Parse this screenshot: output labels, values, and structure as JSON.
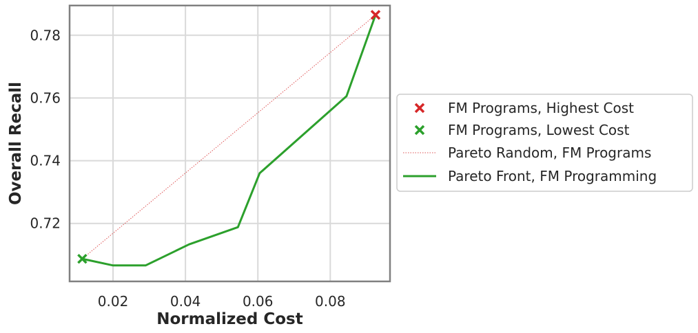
{
  "chart_data": {
    "type": "line",
    "title": "",
    "xlabel": "Normalized Cost",
    "ylabel": "Overall Recall",
    "xlim": [
      0.008,
      0.0965
    ],
    "ylim": [
      0.7015,
      0.7895
    ],
    "xticks": [
      "0.02",
      "0.04",
      "0.06",
      "0.08"
    ],
    "xtick_values": [
      0.02,
      0.04,
      0.06,
      0.08
    ],
    "yticks": [
      "0.72",
      "0.74",
      "0.76",
      "0.78"
    ],
    "ytick_values": [
      0.72,
      0.74,
      0.76,
      0.78
    ],
    "grid": true,
    "legend_position": "right, outside plot",
    "series": [
      {
        "name": "FM Programs, Highest Cost",
        "kind": "marker-x",
        "color": "#d62728",
        "x": [
          0.0925
        ],
        "y": [
          0.7865
        ]
      },
      {
        "name": "FM Programs, Lowest Cost",
        "kind": "marker-x",
        "color": "#2ca02c",
        "x": [
          0.0115
        ],
        "y": [
          0.7087
        ]
      },
      {
        "name": "Pareto Random, FM Programs",
        "kind": "dotted-line",
        "color": "#d62728",
        "x": [
          0.0115,
          0.0925
        ],
        "y": [
          0.7087,
          0.7865
        ]
      },
      {
        "name": "Pareto Front, FM Programming",
        "kind": "line",
        "color": "#2ca02c",
        "x": [
          0.0115,
          0.02,
          0.029,
          0.041,
          0.0545,
          0.0605,
          0.0845,
          0.0925
        ],
        "y": [
          0.7087,
          0.7066,
          0.7066,
          0.7133,
          0.7188,
          0.736,
          0.7606,
          0.7865
        ]
      }
    ]
  }
}
